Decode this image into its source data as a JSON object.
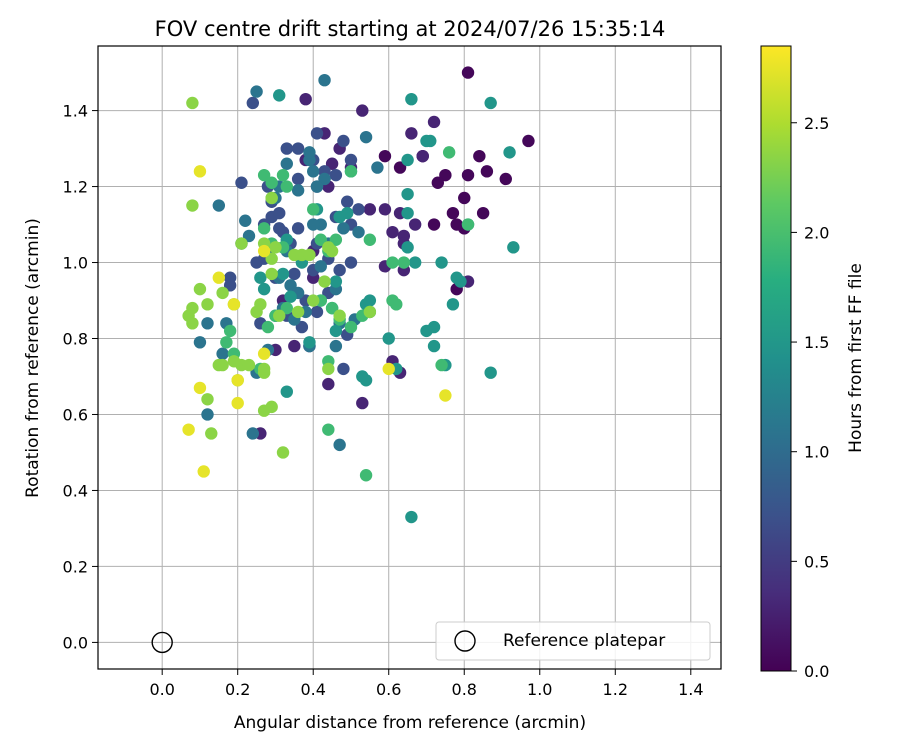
{
  "chart_data": {
    "type": "scatter",
    "title": "FOV centre drift starting at 2024/07/26 15:35:14",
    "xlabel": "Angular distance from reference (arcmin)",
    "ylabel": "Rotation from reference (arcmin)",
    "xlim": [
      -0.17,
      1.48
    ],
    "ylim": [
      -0.07,
      1.57
    ],
    "xticks": [
      "0.0",
      "0.2",
      "0.4",
      "0.6",
      "0.8",
      "1.0",
      "1.2",
      "1.4"
    ],
    "yticks": [
      "0.0",
      "0.2",
      "0.4",
      "0.6",
      "0.8",
      "1.0",
      "1.2",
      "1.4"
    ],
    "grid": true,
    "colormap": "viridis",
    "colorbar": {
      "label": "Hours from first FF file",
      "range": [
        0.0,
        2.85
      ],
      "ticks": [
        "0.0",
        "0.5",
        "1.0",
        "1.5",
        "2.0",
        "2.5"
      ]
    },
    "reference_point": {
      "x": 0.0,
      "y": 0.0
    },
    "legend": {
      "label": "Reference platepar",
      "placement": "lower-right"
    },
    "points": [
      [
        0.81,
        1.5,
        0.05
      ],
      [
        0.97,
        1.32,
        0.05
      ],
      [
        0.59,
        1.28,
        0.05
      ],
      [
        0.84,
        1.28,
        0.05
      ],
      [
        0.86,
        1.24,
        0.05
      ],
      [
        0.81,
        1.23,
        0.05
      ],
      [
        0.75,
        1.23,
        0.05
      ],
      [
        0.91,
        1.22,
        0.05
      ],
      [
        0.73,
        1.21,
        0.05
      ],
      [
        0.8,
        1.17,
        0.05
      ],
      [
        0.77,
        1.13,
        0.05
      ],
      [
        0.85,
        1.13,
        0.05
      ],
      [
        0.78,
        1.1,
        0.05
      ],
      [
        0.8,
        1.09,
        0.05
      ],
      [
        0.72,
        1.1,
        0.05
      ],
      [
        0.63,
        1.25,
        0.05
      ],
      [
        0.78,
        0.93,
        0.05
      ],
      [
        0.69,
        1.28,
        0.1
      ],
      [
        0.53,
        1.4,
        0.3
      ],
      [
        0.72,
        1.37,
        0.3
      ],
      [
        0.69,
        1.28,
        0.3
      ],
      [
        0.66,
        1.34,
        0.3
      ],
      [
        0.38,
        1.43,
        0.3
      ],
      [
        0.43,
        1.34,
        0.3
      ],
      [
        0.47,
        1.3,
        0.3
      ],
      [
        0.5,
        1.25,
        0.3
      ],
      [
        0.55,
        1.14,
        0.3
      ],
      [
        0.59,
        1.14,
        0.3
      ],
      [
        0.64,
        1.07,
        0.3
      ],
      [
        0.64,
        1.05,
        0.3
      ],
      [
        0.59,
        0.99,
        0.3
      ],
      [
        0.64,
        0.98,
        0.3
      ],
      [
        0.61,
        1.08,
        0.3
      ],
      [
        0.63,
        1.13,
        0.3
      ],
      [
        0.67,
        1.1,
        0.3
      ],
      [
        0.53,
        0.63,
        0.3
      ],
      [
        0.44,
        0.68,
        0.3
      ],
      [
        0.39,
        0.78,
        0.3
      ],
      [
        0.3,
        0.77,
        0.3
      ],
      [
        0.35,
        0.78,
        0.3
      ],
      [
        0.61,
        0.74,
        0.3
      ],
      [
        0.63,
        0.71,
        0.3
      ],
      [
        0.81,
        0.95,
        0.3
      ],
      [
        0.45,
        1.26,
        0.3
      ],
      [
        0.44,
        1.2,
        0.3
      ],
      [
        0.43,
        1.22,
        0.3
      ],
      [
        0.4,
        1.03,
        0.3
      ],
      [
        0.38,
        1.27,
        0.3
      ],
      [
        0.32,
        0.9,
        0.3
      ],
      [
        0.26,
        0.55,
        0.3
      ],
      [
        0.4,
        0.96,
        0.3
      ],
      [
        0.24,
        1.42,
        0.7
      ],
      [
        0.33,
        1.3,
        0.7
      ],
      [
        0.36,
        1.3,
        0.7
      ],
      [
        0.41,
        1.34,
        0.7
      ],
      [
        0.48,
        1.32,
        0.7
      ],
      [
        0.5,
        1.27,
        0.7
      ],
      [
        0.4,
        1.27,
        0.7
      ],
      [
        0.36,
        1.22,
        0.7
      ],
      [
        0.41,
        1.2,
        0.7
      ],
      [
        0.46,
        1.23,
        0.7
      ],
      [
        0.43,
        1.24,
        0.7
      ],
      [
        0.49,
        1.16,
        0.7
      ],
      [
        0.52,
        1.14,
        0.7
      ],
      [
        0.46,
        1.12,
        0.7
      ],
      [
        0.5,
        1.1,
        0.7
      ],
      [
        0.21,
        1.21,
        0.7
      ],
      [
        0.28,
        1.2,
        0.7
      ],
      [
        0.29,
        1.12,
        0.7
      ],
      [
        0.31,
        1.13,
        0.7
      ],
      [
        0.27,
        1.1,
        0.7
      ],
      [
        0.32,
        1.08,
        0.7
      ],
      [
        0.34,
        1.05,
        0.7
      ],
      [
        0.36,
        1.09,
        0.7
      ],
      [
        0.41,
        1.05,
        0.7
      ],
      [
        0.4,
        0.98,
        0.7
      ],
      [
        0.44,
        1.01,
        0.7
      ],
      [
        0.47,
        0.98,
        0.7
      ],
      [
        0.35,
        0.97,
        0.7
      ],
      [
        0.3,
        0.96,
        0.7
      ],
      [
        0.27,
        1.01,
        0.7
      ],
      [
        0.25,
        1.0,
        0.7
      ],
      [
        0.33,
        0.86,
        0.7
      ],
      [
        0.38,
        0.9,
        0.7
      ],
      [
        0.41,
        0.87,
        0.7
      ],
      [
        0.44,
        0.92,
        0.7
      ],
      [
        0.5,
        1.0,
        0.7
      ],
      [
        0.49,
        0.81,
        0.7
      ],
      [
        0.48,
        0.72,
        0.7
      ],
      [
        0.37,
        0.83,
        0.7
      ],
      [
        0.26,
        0.84,
        0.7
      ],
      [
        0.31,
        1.09,
        0.7
      ],
      [
        0.29,
        1.16,
        0.7
      ],
      [
        0.55,
        0.87,
        0.7
      ],
      [
        0.18,
        0.96,
        0.7
      ],
      [
        0.18,
        0.94,
        0.7
      ],
      [
        0.43,
        1.48,
        1.1
      ],
      [
        0.25,
        1.45,
        1.1
      ],
      [
        0.39,
        1.27,
        1.1
      ],
      [
        0.39,
        1.29,
        1.1
      ],
      [
        0.4,
        1.24,
        1.1
      ],
      [
        0.54,
        1.33,
        1.1
      ],
      [
        0.57,
        1.25,
        1.1
      ],
      [
        0.36,
        1.19,
        1.1
      ],
      [
        0.31,
        1.2,
        1.1
      ],
      [
        0.3,
        1.17,
        1.1
      ],
      [
        0.43,
        1.22,
        1.1
      ],
      [
        0.41,
        1.2,
        1.1
      ],
      [
        0.42,
        1.1,
        1.1
      ],
      [
        0.44,
        1.05,
        1.1
      ],
      [
        0.4,
        1.1,
        1.1
      ],
      [
        0.48,
        1.09,
        1.1
      ],
      [
        0.52,
        1.08,
        1.1
      ],
      [
        0.22,
        1.11,
        1.1
      ],
      [
        0.21,
        1.05,
        1.1
      ],
      [
        0.23,
        1.07,
        1.1
      ],
      [
        0.28,
        1.03,
        1.1
      ],
      [
        0.33,
        1.03,
        1.1
      ],
      [
        0.31,
        0.96,
        1.1
      ],
      [
        0.34,
        0.94,
        1.1
      ],
      [
        0.36,
        0.92,
        1.1
      ],
      [
        0.42,
        0.99,
        1.1
      ],
      [
        0.46,
        0.93,
        1.1
      ],
      [
        0.51,
        0.85,
        1.1
      ],
      [
        0.47,
        0.84,
        1.1
      ],
      [
        0.38,
        0.87,
        1.1
      ],
      [
        0.35,
        0.85,
        1.1
      ],
      [
        0.3,
        0.86,
        1.1
      ],
      [
        0.32,
        0.88,
        1.1
      ],
      [
        0.28,
        0.77,
        1.1
      ],
      [
        0.25,
        0.71,
        1.1
      ],
      [
        0.24,
        0.55,
        1.1
      ],
      [
        0.12,
        0.84,
        1.1
      ],
      [
        0.12,
        0.6,
        1.1
      ],
      [
        0.1,
        0.79,
        1.1
      ],
      [
        0.16,
        0.76,
        1.1
      ],
      [
        0.17,
        0.84,
        1.1
      ],
      [
        0.15,
        1.15,
        1.1
      ],
      [
        0.47,
        0.52,
        1.1
      ],
      [
        0.39,
        0.78,
        1.1
      ],
      [
        0.46,
        0.78,
        1.1
      ],
      [
        0.33,
        1.26,
        1.1
      ],
      [
        0.31,
        1.44,
        1.5
      ],
      [
        0.66,
        1.43,
        1.5
      ],
      [
        0.87,
        1.42,
        1.5
      ],
      [
        0.65,
        1.18,
        1.5
      ],
      [
        0.65,
        1.13,
        1.5
      ],
      [
        0.7,
        1.32,
        1.5
      ],
      [
        0.5,
        1.24,
        1.5
      ],
      [
        0.92,
        1.29,
        1.5
      ],
      [
        0.93,
        1.04,
        1.5
      ],
      [
        0.65,
        1.04,
        1.5
      ],
      [
        0.81,
        1.1,
        1.5
      ],
      [
        0.47,
        1.12,
        1.5
      ],
      [
        0.49,
        1.13,
        1.5
      ],
      [
        0.41,
        1.14,
        1.5
      ],
      [
        0.33,
        1.06,
        1.5
      ],
      [
        0.37,
        1.0,
        1.5
      ],
      [
        0.26,
        0.96,
        1.5
      ],
      [
        0.32,
        0.97,
        1.5
      ],
      [
        0.27,
        0.93,
        1.5
      ],
      [
        0.34,
        0.91,
        1.5
      ],
      [
        0.42,
        0.9,
        1.5
      ],
      [
        0.46,
        0.95,
        1.5
      ],
      [
        0.54,
        0.89,
        1.5
      ],
      [
        0.45,
        0.88,
        1.5
      ],
      [
        0.55,
        0.9,
        1.5
      ],
      [
        0.46,
        0.82,
        1.5
      ],
      [
        0.39,
        0.79,
        1.5
      ],
      [
        0.6,
        0.8,
        1.5
      ],
      [
        0.67,
        1.0,
        1.5
      ],
      [
        0.74,
        1.0,
        1.5
      ],
      [
        0.79,
        0.95,
        1.5
      ],
      [
        0.72,
        0.78,
        1.5
      ],
      [
        0.72,
        0.83,
        1.5
      ],
      [
        0.7,
        0.82,
        1.5
      ],
      [
        0.87,
        0.71,
        1.5
      ],
      [
        0.62,
        0.72,
        1.5
      ],
      [
        0.53,
        0.7,
        1.5
      ],
      [
        0.54,
        0.69,
        1.5
      ],
      [
        0.33,
        0.66,
        1.5
      ],
      [
        0.66,
        0.33,
        1.5
      ],
      [
        0.75,
        0.73,
        1.5
      ],
      [
        0.77,
        0.89,
        1.5
      ],
      [
        0.78,
        0.96,
        1.5
      ],
      [
        0.65,
        1.27,
        1.5
      ],
      [
        0.71,
        1.32,
        1.5
      ],
      [
        0.27,
        1.23,
        1.95
      ],
      [
        0.32,
        1.23,
        1.95
      ],
      [
        0.29,
        1.21,
        1.95
      ],
      [
        0.33,
        1.2,
        1.95
      ],
      [
        0.4,
        1.14,
        1.95
      ],
      [
        0.29,
        1.17,
        1.95
      ],
      [
        0.27,
        1.09,
        1.95
      ],
      [
        0.29,
        1.05,
        1.95
      ],
      [
        0.32,
        1.04,
        1.95
      ],
      [
        0.42,
        1.06,
        1.95
      ],
      [
        0.44,
        1.03,
        1.95
      ],
      [
        0.46,
        1.06,
        1.95
      ],
      [
        0.5,
        1.24,
        1.95
      ],
      [
        0.55,
        1.06,
        1.95
      ],
      [
        0.61,
        1.0,
        1.95
      ],
      [
        0.64,
        1.0,
        1.95
      ],
      [
        0.61,
        0.9,
        1.95
      ],
      [
        0.62,
        0.89,
        1.95
      ],
      [
        0.5,
        0.83,
        1.95
      ],
      [
        0.47,
        0.85,
        1.95
      ],
      [
        0.45,
        0.88,
        1.95
      ],
      [
        0.44,
        0.74,
        1.95
      ],
      [
        0.55,
        0.87,
        1.95
      ],
      [
        0.53,
        0.86,
        1.95
      ],
      [
        0.33,
        0.88,
        1.95
      ],
      [
        0.3,
        0.86,
        1.95
      ],
      [
        0.28,
        0.83,
        1.95
      ],
      [
        0.18,
        0.82,
        1.95
      ],
      [
        0.19,
        0.76,
        1.95
      ],
      [
        0.17,
        0.79,
        1.95
      ],
      [
        0.44,
        0.56,
        1.95
      ],
      [
        0.54,
        0.44,
        1.95
      ],
      [
        0.81,
        1.1,
        1.95
      ],
      [
        0.76,
        1.29,
        1.95
      ],
      [
        0.74,
        0.73,
        1.95
      ],
      [
        0.42,
        0.9,
        1.95
      ],
      [
        0.26,
        0.72,
        1.95
      ],
      [
        0.08,
        1.42,
        2.35
      ],
      [
        0.08,
        1.15,
        2.35
      ],
      [
        0.21,
        1.05,
        2.35
      ],
      [
        0.27,
        1.05,
        2.35
      ],
      [
        0.29,
        0.97,
        2.35
      ],
      [
        0.29,
        1.01,
        2.35
      ],
      [
        0.35,
        1.02,
        2.35
      ],
      [
        0.37,
        1.02,
        2.35
      ],
      [
        0.3,
        1.04,
        2.35
      ],
      [
        0.44,
        1.04,
        2.35
      ],
      [
        0.43,
        0.95,
        2.35
      ],
      [
        0.47,
        0.86,
        2.35
      ],
      [
        0.4,
        0.9,
        2.35
      ],
      [
        0.36,
        0.87,
        2.35
      ],
      [
        0.31,
        0.86,
        2.35
      ],
      [
        0.26,
        0.89,
        2.35
      ],
      [
        0.25,
        0.87,
        2.35
      ],
      [
        0.19,
        0.89,
        2.35
      ],
      [
        0.16,
        0.92,
        2.35
      ],
      [
        0.1,
        0.93,
        2.35
      ],
      [
        0.12,
        0.89,
        2.35
      ],
      [
        0.07,
        0.86,
        2.35
      ],
      [
        0.08,
        0.84,
        2.35
      ],
      [
        0.08,
        0.88,
        2.35
      ],
      [
        0.15,
        0.73,
        2.35
      ],
      [
        0.16,
        0.73,
        2.35
      ],
      [
        0.19,
        0.74,
        2.35
      ],
      [
        0.21,
        0.73,
        2.35
      ],
      [
        0.23,
        0.73,
        2.35
      ],
      [
        0.27,
        0.72,
        2.35
      ],
      [
        0.27,
        0.71,
        2.35
      ],
      [
        0.2,
        0.69,
        2.35
      ],
      [
        0.12,
        0.64,
        2.35
      ],
      [
        0.13,
        0.55,
        2.35
      ],
      [
        0.27,
        0.61,
        2.35
      ],
      [
        0.29,
        0.62,
        2.35
      ],
      [
        0.32,
        0.5,
        2.35
      ],
      [
        0.44,
        0.72,
        2.35
      ],
      [
        0.55,
        0.87,
        2.35
      ],
      [
        0.29,
        1.17,
        2.35
      ],
      [
        0.39,
        1.02,
        2.35
      ],
      [
        0.45,
        1.03,
        2.35
      ],
      [
        0.1,
        1.24,
        2.75
      ],
      [
        0.15,
        0.96,
        2.75
      ],
      [
        0.19,
        0.89,
        2.75
      ],
      [
        0.27,
        1.03,
        2.75
      ],
      [
        0.27,
        0.76,
        2.75
      ],
      [
        0.2,
        0.63,
        2.75
      ],
      [
        0.1,
        0.67,
        2.75
      ],
      [
        0.07,
        0.56,
        2.75
      ],
      [
        0.11,
        0.45,
        2.75
      ],
      [
        0.6,
        0.72,
        2.75
      ],
      [
        0.75,
        0.65,
        2.75
      ],
      [
        0.2,
        0.69,
        2.75
      ]
    ]
  }
}
